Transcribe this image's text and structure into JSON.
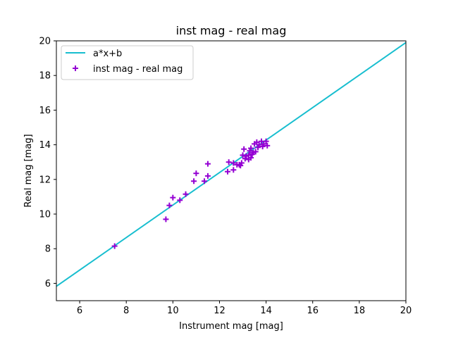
{
  "chart_data": {
    "type": "scatter",
    "title": "inst mag - real mag",
    "xlabel": "Instrument mag [mag]",
    "ylabel": "Real mag [mag]",
    "xlim": [
      5,
      20
    ],
    "ylim": [
      5,
      20
    ],
    "xticks": [
      6,
      8,
      10,
      12,
      14,
      16,
      18,
      20
    ],
    "yticks": [
      6,
      8,
      10,
      12,
      14,
      16,
      18,
      20
    ],
    "grid": false,
    "legend_position": "top-left",
    "fit_line": {
      "name": "a*x+b",
      "color": "#17becf",
      "points": [
        [
          5,
          5.83
        ],
        [
          20,
          19.9
        ]
      ]
    },
    "series": [
      {
        "name": "inst mag - real mag",
        "marker": "plus",
        "color": "#9400d3",
        "points": [
          [
            7.5,
            8.15
          ],
          [
            9.7,
            9.7
          ],
          [
            9.85,
            10.5
          ],
          [
            10.0,
            10.95
          ],
          [
            10.3,
            10.8
          ],
          [
            10.55,
            11.15
          ],
          [
            10.9,
            11.9
          ],
          [
            11.0,
            12.35
          ],
          [
            11.35,
            11.9
          ],
          [
            11.5,
            12.2
          ],
          [
            11.5,
            12.9
          ],
          [
            12.35,
            12.45
          ],
          [
            12.4,
            13.0
          ],
          [
            12.6,
            12.55
          ],
          [
            12.6,
            12.95
          ],
          [
            12.75,
            12.85
          ],
          [
            12.85,
            12.85
          ],
          [
            12.95,
            12.95
          ],
          [
            13.0,
            13.4
          ],
          [
            13.05,
            13.75
          ],
          [
            13.1,
            13.2
          ],
          [
            13.15,
            13.35
          ],
          [
            13.25,
            13.4
          ],
          [
            13.25,
            13.15
          ],
          [
            13.3,
            13.65
          ],
          [
            13.35,
            13.8
          ],
          [
            13.4,
            13.45
          ],
          [
            13.45,
            13.55
          ],
          [
            13.5,
            14.05
          ],
          [
            13.55,
            13.6
          ],
          [
            13.6,
            14.15
          ],
          [
            13.65,
            13.85
          ],
          [
            13.7,
            14.0
          ],
          [
            13.8,
            14.2
          ],
          [
            13.85,
            13.9
          ],
          [
            13.9,
            14.05
          ],
          [
            14.0,
            14.2
          ],
          [
            14.05,
            13.95
          ],
          [
            12.9,
            12.8
          ],
          [
            13.35,
            13.25
          ]
        ]
      }
    ]
  }
}
